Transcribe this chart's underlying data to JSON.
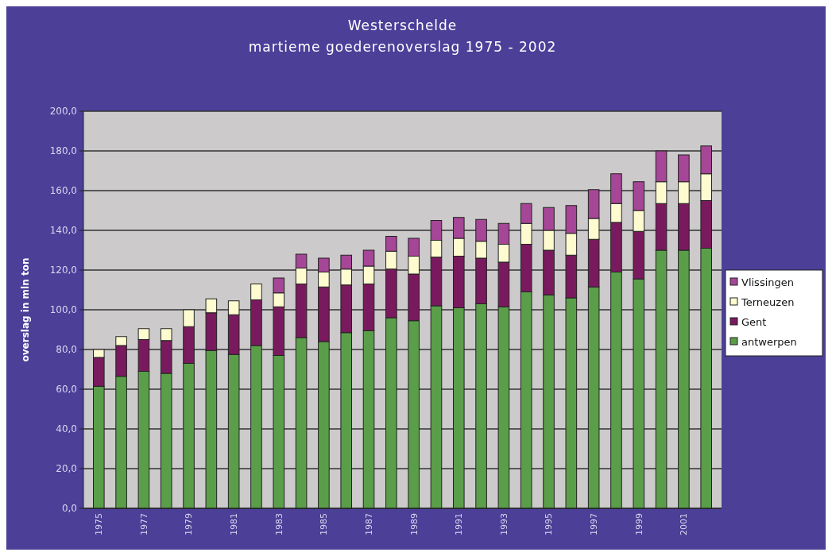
{
  "chart_data": {
    "type": "bar",
    "stacked": true,
    "title": "Westerschelde\nmartieme goederenoverslag 1975 - 2002",
    "ylabel": "overslag in mln ton",
    "categories": [
      "1975",
      null,
      "1977",
      null,
      "1979",
      null,
      "1981",
      null,
      "1983",
      null,
      "1985",
      null,
      "1987",
      null,
      "1989",
      null,
      "1991",
      null,
      "1993",
      null,
      "1995",
      null,
      "1997",
      null,
      "1999",
      null,
      "2001",
      null
    ],
    "series": [
      {
        "name": "antwerpen",
        "color": "#5a9e4a",
        "values": [
          61.5,
          66.5,
          69,
          68,
          73,
          79.5,
          77.5,
          82,
          77,
          86,
          84,
          88.5,
          89.5,
          96,
          94.5,
          102,
          101,
          103,
          101.5,
          109,
          107.5,
          106,
          111.5,
          119,
          115.5,
          130,
          130,
          131
        ]
      },
      {
        "name": "Gent",
        "color": "#7a1a5e",
        "values": [
          14.5,
          15.5,
          16,
          16.5,
          18.5,
          19,
          20,
          23,
          24.5,
          27,
          27.5,
          24,
          23.5,
          24.5,
          23.5,
          24.5,
          26,
          23,
          22.5,
          24,
          22.5,
          21.5,
          24,
          25,
          24,
          23.5,
          23.5,
          24
        ]
      },
      {
        "name": "Terneuzen",
        "color": "#fffbd0",
        "values": [
          4,
          4.5,
          5.5,
          6,
          8.5,
          7,
          7,
          8,
          7,
          8,
          7.5,
          8,
          9,
          9,
          9,
          8.5,
          9,
          8.5,
          9,
          10.5,
          10,
          11,
          10.5,
          9.5,
          10.5,
          11,
          11,
          13.5
        ]
      },
      {
        "name": "Vlissingen",
        "color": "#a64696",
        "values": [
          null,
          null,
          null,
          null,
          null,
          null,
          null,
          null,
          7.5,
          7,
          7,
          7,
          8,
          7.5,
          9,
          10,
          10.5,
          11,
          10.5,
          10,
          11.5,
          14,
          14.5,
          15,
          14.5,
          15.5,
          13.5,
          14
        ]
      }
    ],
    "ylim": [
      0,
      200
    ],
    "yticks": [
      {
        "value": 0,
        "label": "0,0"
      },
      {
        "value": 20,
        "label": "20,0"
      },
      {
        "value": 40,
        "label": "40,0"
      },
      {
        "value": 60,
        "label": "60,0"
      },
      {
        "value": 80,
        "label": "80,0"
      },
      {
        "value": 100,
        "label": "100,0"
      },
      {
        "value": 120,
        "label": "120,0"
      },
      {
        "value": 140,
        "label": "140,0"
      },
      {
        "value": 160,
        "label": "160,0"
      },
      {
        "value": 180,
        "label": "180,0"
      },
      {
        "value": 200,
        "label": "200,0"
      }
    ],
    "grid": "y",
    "legend": "right"
  }
}
